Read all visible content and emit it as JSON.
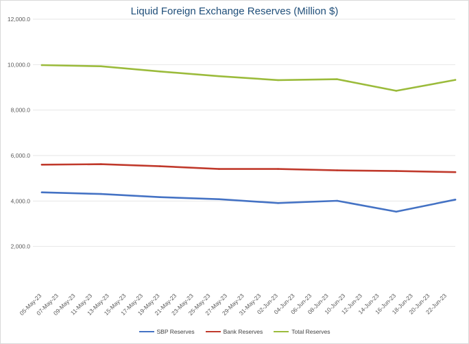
{
  "chart_data": {
    "type": "line",
    "title": "Liquid Foreign Exchange Reserves (Million $)",
    "xlabel": "",
    "ylabel": "",
    "ylim": [
      0,
      12000
    ],
    "yticks": [
      2000,
      4000,
      6000,
      8000,
      10000,
      12000
    ],
    "ytick_labels": [
      "2,000.0",
      "4,000.0",
      "6,000.0",
      "8,000.0",
      "10,000.0",
      "12,000.0"
    ],
    "grid": true,
    "legend_position": "bottom",
    "categories": [
      "05-May-23",
      "07-May-23",
      "09-May-23",
      "11-May-23",
      "13-May-23",
      "15-May-23",
      "17-May-23",
      "19-May-23",
      "21-May-23",
      "23-May-23",
      "25-May-23",
      "27-May-23",
      "29-May-23",
      "31-May-23",
      "02-Jun-23",
      "04-Jun-23",
      "06-Jun-23",
      "08-Jun-23",
      "10-Jun-23",
      "12-Jun-23",
      "14-Jun-23",
      "16-Jun-23",
      "18-Jun-23",
      "20-Jun-23",
      "22-Jun-23"
    ],
    "series": [
      {
        "name": "SBP Reserves",
        "color": "#4472c4",
        "points": [
          {
            "x": "05-May-23",
            "y": 4380
          },
          {
            "x": "12-May-23",
            "y": 4310
          },
          {
            "x": "19-May-23",
            "y": 4170
          },
          {
            "x": "26-May-23",
            "y": 4080
          },
          {
            "x": "02-Jun-23",
            "y": 3910
          },
          {
            "x": "09-Jun-23",
            "y": 4010
          },
          {
            "x": "16-Jun-23",
            "y": 3530
          },
          {
            "x": "23-Jun-23",
            "y": 4060
          }
        ]
      },
      {
        "name": "Bank Reserves",
        "color": "#c0392b",
        "points": [
          {
            "x": "05-May-23",
            "y": 5600
          },
          {
            "x": "12-May-23",
            "y": 5620
          },
          {
            "x": "19-May-23",
            "y": 5530
          },
          {
            "x": "26-May-23",
            "y": 5410
          },
          {
            "x": "02-Jun-23",
            "y": 5410
          },
          {
            "x": "09-Jun-23",
            "y": 5350
          },
          {
            "x": "16-Jun-23",
            "y": 5320
          },
          {
            "x": "23-Jun-23",
            "y": 5270
          }
        ]
      },
      {
        "name": "Total Reserves",
        "color": "#9bbb3b",
        "points": [
          {
            "x": "05-May-23",
            "y": 9980
          },
          {
            "x": "12-May-23",
            "y": 9930
          },
          {
            "x": "19-May-23",
            "y": 9700
          },
          {
            "x": "26-May-23",
            "y": 9490
          },
          {
            "x": "02-Jun-23",
            "y": 9320
          },
          {
            "x": "09-Jun-23",
            "y": 9360
          },
          {
            "x": "16-Jun-23",
            "y": 8850
          },
          {
            "x": "23-Jun-23",
            "y": 9330
          }
        ]
      }
    ]
  }
}
